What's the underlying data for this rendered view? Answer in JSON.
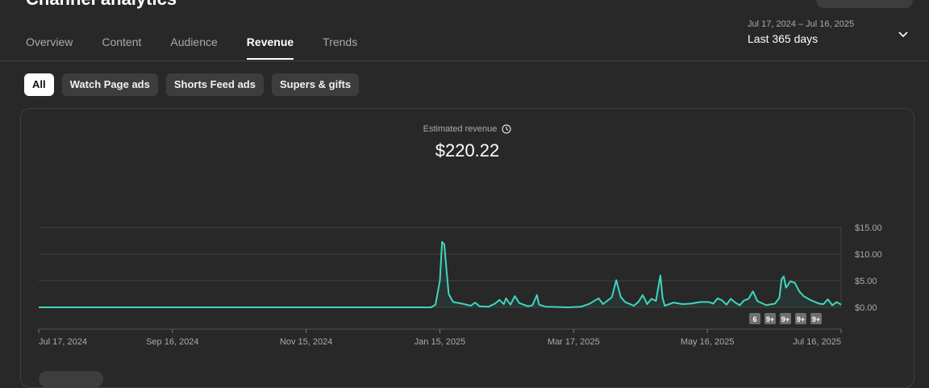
{
  "header": {
    "title": "Channel analytics"
  },
  "tabs": [
    {
      "label": "Overview"
    },
    {
      "label": "Content"
    },
    {
      "label": "Audience"
    },
    {
      "label": "Revenue"
    },
    {
      "label": "Trends"
    }
  ],
  "active_tab": "Revenue",
  "date_range": {
    "range": "Jul 17, 2024 – Jul 16, 2025",
    "label": "Last 365 days"
  },
  "filters": [
    {
      "label": "All"
    },
    {
      "label": "Watch Page ads"
    },
    {
      "label": "Shorts Feed ads"
    },
    {
      "label": "Supers & gifts"
    }
  ],
  "metric": {
    "label": "Estimated revenue",
    "value": "$220.22"
  },
  "colors": {
    "line": "#3ed6c0",
    "grid": "#3f3f3f",
    "marker": "#6f6f6f"
  },
  "markers": [
    "6",
    "9+",
    "9+",
    "9+",
    "9+"
  ],
  "chart_data": {
    "type": "line",
    "x_ticks": [
      "Jul 17, 2024",
      "Sep 16, 2024",
      "Nov 15, 2024",
      "Jan 15, 2025",
      "Mar 17, 2025",
      "May 16, 2025",
      "Jul 16, 2025"
    ],
    "y_ticks": [
      "$15.00",
      "$10.00",
      "$5.00",
      "$0.00"
    ],
    "ylim": [
      0,
      15
    ],
    "xlim": [
      0,
      364
    ],
    "series": [
      {
        "values": [
          [
            0,
            0
          ],
          [
            178,
            0
          ],
          [
            180,
            0.5
          ],
          [
            182,
            5
          ],
          [
            183,
            12.3
          ],
          [
            184,
            11.8
          ],
          [
            185,
            7
          ],
          [
            186,
            2.5
          ],
          [
            188,
            1
          ],
          [
            192,
            0.7
          ],
          [
            196,
            0.3
          ],
          [
            198,
            0.9
          ],
          [
            200,
            0.2
          ],
          [
            204,
            0.1
          ],
          [
            207,
            0.7
          ],
          [
            209,
            1.4
          ],
          [
            211,
            0.6
          ],
          [
            212,
            1.7
          ],
          [
            214,
            0.5
          ],
          [
            216,
            2.1
          ],
          [
            218,
            0.8
          ],
          [
            222,
            0.2
          ],
          [
            224,
            0.4
          ],
          [
            226,
            2.3
          ],
          [
            227,
            0.5
          ],
          [
            230,
            0.1
          ],
          [
            240,
            0
          ],
          [
            246,
            0.1
          ],
          [
            250,
            0.7
          ],
          [
            254,
            1.7
          ],
          [
            256,
            0.6
          ],
          [
            260,
            1.9
          ],
          [
            262,
            5.1
          ],
          [
            264,
            2
          ],
          [
            266,
            1
          ],
          [
            270,
            0.3
          ],
          [
            272,
            1
          ],
          [
            274,
            2.3
          ],
          [
            276,
            0.6
          ],
          [
            278,
            1.6
          ],
          [
            280,
            1.2
          ],
          [
            282,
            6
          ],
          [
            283,
            1.8
          ],
          [
            284,
            0.3
          ],
          [
            288,
            0.9
          ],
          [
            292,
            0.6
          ],
          [
            296,
            0.7
          ],
          [
            300,
            1
          ],
          [
            304,
            1
          ],
          [
            306,
            0.7
          ],
          [
            308,
            1.7
          ],
          [
            310,
            1.3
          ],
          [
            312,
            0.5
          ],
          [
            314,
            1.6
          ],
          [
            316,
            0.9
          ],
          [
            318,
            0.4
          ],
          [
            320,
            1.3
          ],
          [
            322,
            1.6
          ],
          [
            324,
            3
          ],
          [
            326,
            1.2
          ],
          [
            330,
            0.4
          ],
          [
            334,
            0.7
          ],
          [
            336,
            1.8
          ],
          [
            337,
            5.3
          ],
          [
            338,
            5.8
          ],
          [
            339,
            3.7
          ],
          [
            341,
            4.9
          ],
          [
            343,
            4.6
          ],
          [
            345,
            3
          ],
          [
            347,
            2.1
          ],
          [
            350,
            1.4
          ],
          [
            354,
            0.7
          ],
          [
            356,
            0.6
          ],
          [
            358,
            1.5
          ],
          [
            360,
            0.4
          ],
          [
            362,
            1
          ],
          [
            364,
            0.5
          ]
        ]
      }
    ]
  }
}
